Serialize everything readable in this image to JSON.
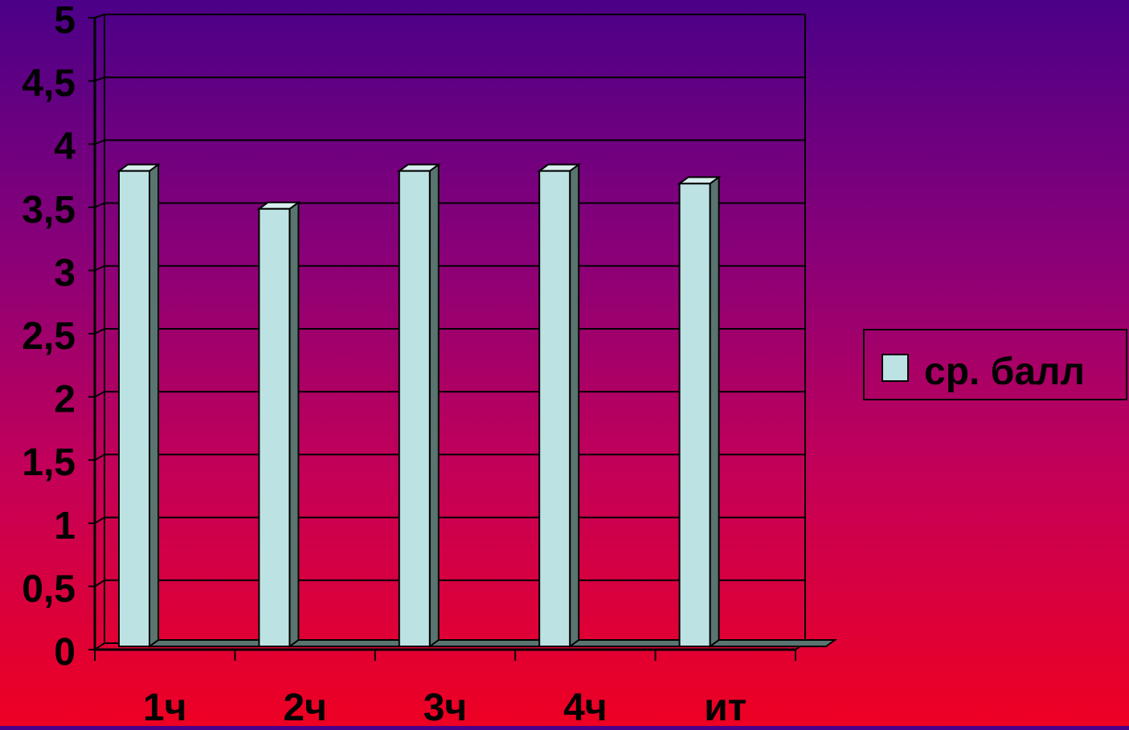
{
  "chart_data": {
    "type": "bar",
    "categories": [
      "1ч",
      "2ч",
      "3ч",
      "4ч",
      "ит"
    ],
    "series": [
      {
        "name": "ср. балл",
        "values": [
          3.8,
          3.5,
          3.8,
          3.8,
          3.7
        ]
      }
    ],
    "ylim": [
      0,
      5
    ],
    "yticks": [
      "0",
      "0,5",
      "1",
      "1,5",
      "2",
      "2,5",
      "3",
      "3,5",
      "4",
      "4,5",
      "5"
    ],
    "grid": true,
    "legend_position": "right",
    "colors": {
      "bar_front": "#bde2e4",
      "bar_side": "#5a7470",
      "bar_top": "#d8eeee",
      "grid_line": "#000000",
      "text": "#000000"
    }
  }
}
